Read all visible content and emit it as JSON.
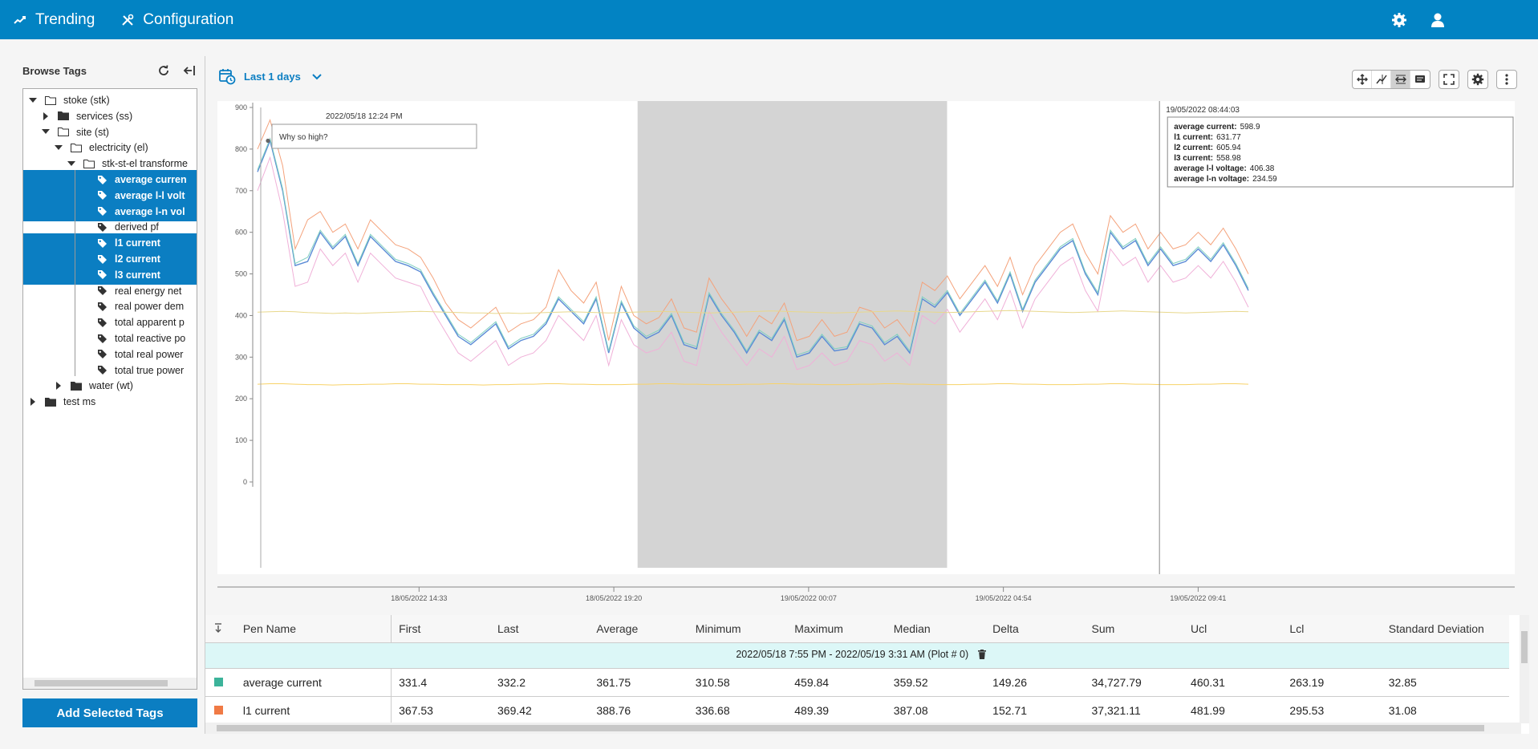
{
  "nav": {
    "trending": "Trending",
    "configuration": "Configuration"
  },
  "browse": {
    "title": "Browse Tags",
    "add_button": "Add Selected Tags"
  },
  "tree": [
    {
      "label": "stoke (stk)",
      "level": 0,
      "caret": "down",
      "icon": "folder-open",
      "selected": false
    },
    {
      "label": "services (ss)",
      "level": 1,
      "caret": "right",
      "icon": "folder",
      "selected": false
    },
    {
      "label": "site (st)",
      "level": 1,
      "caret": "down",
      "icon": "folder-open",
      "selected": false
    },
    {
      "label": "electricity (el)",
      "level": 2,
      "caret": "down",
      "icon": "folder-open",
      "selected": false
    },
    {
      "label": "stk-st-el transforme",
      "level": 3,
      "caret": "down",
      "icon": "folder-open",
      "selected": false
    },
    {
      "label": "average curren",
      "level": 4,
      "caret": "",
      "icon": "tag",
      "selected": true
    },
    {
      "label": "average l-l volt",
      "level": 4,
      "caret": "",
      "icon": "tag",
      "selected": true
    },
    {
      "label": "average l-n vol",
      "level": 4,
      "caret": "",
      "icon": "tag",
      "selected": true
    },
    {
      "label": "derived pf",
      "level": 4,
      "caret": "",
      "icon": "tag",
      "selected": false
    },
    {
      "label": "l1 current",
      "level": 4,
      "caret": "",
      "icon": "tag",
      "selected": true
    },
    {
      "label": "l2 current",
      "level": 4,
      "caret": "",
      "icon": "tag",
      "selected": true
    },
    {
      "label": "l3 current",
      "level": 4,
      "caret": "",
      "icon": "tag",
      "selected": true
    },
    {
      "label": "real energy net",
      "level": 4,
      "caret": "",
      "icon": "tag",
      "selected": false
    },
    {
      "label": "real power dem",
      "level": 4,
      "caret": "",
      "icon": "tag",
      "selected": false
    },
    {
      "label": "total apparent p",
      "level": 4,
      "caret": "",
      "icon": "tag",
      "selected": false
    },
    {
      "label": "total reactive po",
      "level": 4,
      "caret": "",
      "icon": "tag",
      "selected": false
    },
    {
      "label": "total real power",
      "level": 4,
      "caret": "",
      "icon": "tag",
      "selected": false
    },
    {
      "label": "total true power",
      "level": 4,
      "caret": "",
      "icon": "tag",
      "selected": false
    },
    {
      "label": "water (wt)",
      "level": 2,
      "caret": "right",
      "icon": "folder",
      "selected": false
    },
    {
      "label": "test ms",
      "level": 0,
      "caret": "right",
      "icon": "folder",
      "selected": false
    }
  ],
  "range": {
    "label": "Last 1 days"
  },
  "annotation": {
    "timestamp": "2022/05/18 12:24 PM",
    "text": "Why so high?"
  },
  "tooltip": {
    "timestamp": "19/05/2022 08:44:03",
    "rows": [
      {
        "k": "average current:",
        "v": "598.9"
      },
      {
        "k": "l1 current:",
        "v": "631.77"
      },
      {
        "k": "l2 current:",
        "v": "605.94"
      },
      {
        "k": "l3 current:",
        "v": "558.98"
      },
      {
        "k": "average l-l voltage:",
        "v": "406.38"
      },
      {
        "k": "average l-n voltage:",
        "v": "234.59"
      }
    ]
  },
  "colors": {
    "brand": "#0283c3",
    "selection": "#0b7ec2",
    "shade": "#d4d4d4",
    "group_row": "#dcf7f7"
  },
  "chart_data": {
    "type": "line",
    "ylim": [
      0,
      900
    ],
    "yticks": [
      "0",
      "100",
      "200",
      "300",
      "400",
      "500",
      "600",
      "700",
      "800",
      "900"
    ],
    "xticks": [
      "18/05/2022 14:33",
      "18/05/2022 19:20",
      "19/05/2022 00:07",
      "19/05/2022 04:54",
      "19/05/2022 09:41"
    ],
    "x_range": [
      "18/05/2022 10:35",
      "19/05/2022 10:55"
    ],
    "shaded_range": [
      "18/05/2022 19:55",
      "19/05/2022 03:31"
    ],
    "cursor_time": "19/05/2022 08:44",
    "series": [
      {
        "color": "#5b8bd6",
        "values": [
          745,
          820,
          700,
          520,
          530,
          600,
          560,
          590,
          520,
          590,
          560,
          530,
          520,
          505,
          450,
          400,
          350,
          330,
          355,
          380,
          320,
          340,
          350,
          380,
          440,
          410,
          380,
          440,
          310,
          430,
          370,
          345,
          360,
          400,
          330,
          320,
          450,
          400,
          360,
          310,
          360,
          340,
          390,
          300,
          310,
          350,
          315,
          320,
          380,
          370,
          330,
          350,
          310,
          440,
          420,
          455,
          400,
          440,
          480,
          430,
          500,
          410,
          480,
          520,
          560,
          580,
          500,
          450,
          600,
          560,
          580,
          520,
          560,
          520,
          530,
          560,
          530,
          570,
          520,
          460
        ]
      },
      {
        "color": "#f4a27b",
        "values": [
          800,
          870,
          760,
          560,
          630,
          650,
          600,
          620,
          560,
          630,
          600,
          570,
          560,
          540,
          490,
          430,
          390,
          370,
          395,
          420,
          360,
          380,
          390,
          420,
          510,
          460,
          430,
          480,
          340,
          470,
          400,
          380,
          395,
          440,
          370,
          360,
          490,
          440,
          400,
          350,
          400,
          380,
          430,
          340,
          350,
          390,
          350,
          360,
          420,
          410,
          370,
          390,
          350,
          480,
          460,
          495,
          440,
          480,
          520,
          470,
          540,
          450,
          520,
          560,
          600,
          620,
          550,
          500,
          640,
          600,
          620,
          560,
          600,
          560,
          570,
          600,
          570,
          610,
          560,
          500
        ]
      },
      {
        "color": "#7fcfc0",
        "values": [
          750,
          825,
          705,
          525,
          540,
          605,
          565,
          595,
          525,
          595,
          565,
          535,
          525,
          510,
          455,
          405,
          355,
          335,
          360,
          385,
          325,
          345,
          355,
          385,
          445,
          415,
          385,
          445,
          315,
          435,
          375,
          350,
          365,
          405,
          335,
          325,
          455,
          405,
          365,
          315,
          365,
          345,
          395,
          305,
          315,
          355,
          320,
          325,
          385,
          375,
          335,
          355,
          315,
          445,
          425,
          460,
          405,
          445,
          485,
          435,
          505,
          415,
          485,
          525,
          565,
          585,
          505,
          455,
          605,
          565,
          585,
          525,
          565,
          525,
          535,
          565,
          535,
          575,
          525,
          465
        ]
      },
      {
        "color": "#f0b0d8",
        "values": [
          700,
          780,
          650,
          470,
          480,
          560,
          520,
          550,
          480,
          550,
          520,
          490,
          480,
          470,
          410,
          360,
          310,
          290,
          315,
          340,
          280,
          300,
          310,
          340,
          400,
          370,
          340,
          400,
          280,
          390,
          330,
          310,
          320,
          360,
          290,
          280,
          410,
          360,
          320,
          280,
          320,
          300,
          350,
          270,
          280,
          310,
          280,
          290,
          340,
          330,
          290,
          310,
          280,
          400,
          380,
          415,
          360,
          400,
          440,
          390,
          460,
          370,
          440,
          480,
          520,
          540,
          460,
          410,
          560,
          520,
          540,
          480,
          520,
          480,
          490,
          520,
          490,
          530,
          480,
          420
        ]
      },
      {
        "color": "#e8d88c",
        "values": [
          408,
          409,
          410,
          409,
          407,
          406,
          405,
          406,
          405,
          406,
          407,
          408,
          409,
          410,
          409,
          408,
          407,
          406,
          406,
          405,
          406,
          405,
          406,
          407,
          408,
          409,
          408,
          407,
          406,
          407,
          408,
          409,
          410,
          409,
          408,
          407,
          406,
          407,
          408,
          409,
          410,
          411,
          410,
          409,
          408,
          407,
          406,
          407,
          408,
          409,
          410,
          411,
          410,
          409,
          408,
          407,
          408,
          409,
          410,
          411,
          412,
          411,
          410,
          409,
          408,
          407,
          408,
          409,
          410,
          411,
          410,
          409,
          408,
          407,
          406,
          407,
          408,
          409,
          410,
          409
        ]
      },
      {
        "color": "#f8d268",
        "values": [
          235,
          236,
          236,
          235,
          234,
          234,
          233,
          234,
          234,
          235,
          235,
          236,
          236,
          235,
          235,
          234,
          234,
          234,
          233,
          234,
          234,
          235,
          235,
          236,
          236,
          235,
          235,
          234,
          234,
          234,
          235,
          235,
          236,
          236,
          235,
          235,
          234,
          234,
          234,
          235,
          235,
          236,
          236,
          235,
          235,
          234,
          234,
          234,
          235,
          235,
          236,
          236,
          235,
          235,
          234,
          234,
          234,
          235,
          235,
          236,
          236,
          235,
          235,
          234,
          234,
          234,
          235,
          235,
          236,
          236,
          235,
          235,
          234,
          234,
          234,
          235,
          235,
          236,
          236,
          235
        ]
      }
    ]
  },
  "table": {
    "headers": [
      "Pen Name",
      "First",
      "Last",
      "Average",
      "Minimum",
      "Maximum",
      "Median",
      "Delta",
      "Sum",
      "Ucl",
      "Lcl",
      "Standard Deviation"
    ],
    "group_label": "2022/05/18 7:55 PM - 2022/05/19 3:31 AM (Plot # 0)",
    "rows": [
      {
        "color": "#3cb39a",
        "cells": [
          "average current",
          "331.4",
          "332.2",
          "361.75",
          "310.58",
          "459.84",
          "359.52",
          "149.26",
          "34,727.79",
          "460.31",
          "263.19",
          "32.85"
        ]
      },
      {
        "color": "#f07a45",
        "cells": [
          "l1 current",
          "367.53",
          "369.42",
          "388.76",
          "336.68",
          "489.39",
          "387.08",
          "152.71",
          "37,321.11",
          "481.99",
          "295.53",
          "31.08"
        ]
      }
    ]
  }
}
